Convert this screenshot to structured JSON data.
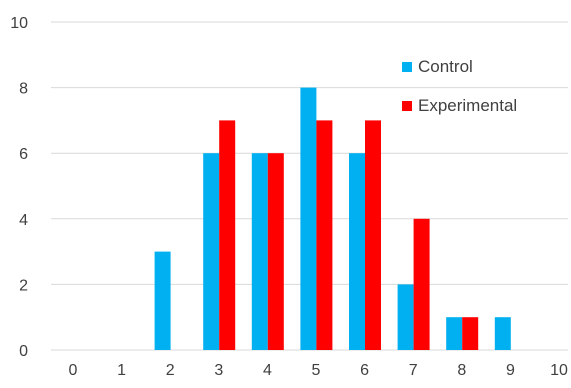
{
  "chart_data": {
    "type": "bar",
    "title": "",
    "xlabel": "",
    "ylabel": "",
    "categories": [
      "0",
      "1",
      "2",
      "3",
      "4",
      "5",
      "6",
      "7",
      "8",
      "9",
      "10"
    ],
    "series": [
      {
        "name": "Control",
        "color": "#00B0F0",
        "values": [
          0,
          3,
          6,
          6,
          8,
          6,
          2,
          1,
          1,
          0,
          0
        ]
      },
      {
        "name": "Experimental",
        "color": "#FF0000",
        "values": [
          0,
          0,
          7,
          6,
          7,
          7,
          4,
          1,
          0,
          0,
          0
        ]
      }
    ],
    "ylim": [
      0,
      10
    ],
    "yticks": [
      "0",
      "2",
      "4",
      "6",
      "8",
      "10"
    ],
    "grid": true,
    "legend_position": "top-right"
  }
}
